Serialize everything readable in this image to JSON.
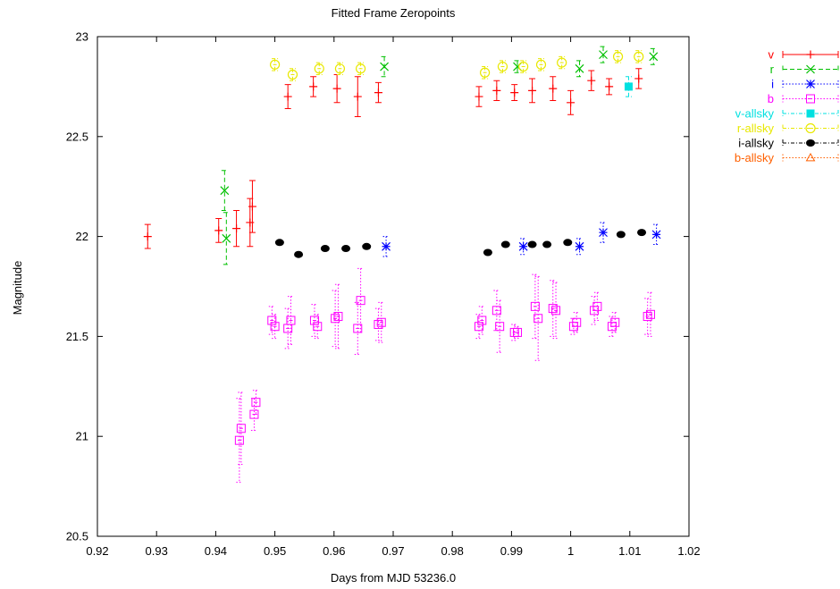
{
  "chart_data": {
    "type": "scatter",
    "title": "Fitted Frame Zeropoints",
    "xlabel": "Days from MJD 53236.0",
    "ylabel": "Magnitude",
    "xlim": [
      0.92,
      1.02
    ],
    "ylim": [
      20.5,
      23.0
    ],
    "xticks": [
      "0.92",
      "0.93",
      "0.94",
      "0.95",
      "0.96",
      "0.97",
      "0.98",
      "0.99",
      "1",
      "1.01",
      "1.02"
    ],
    "yticks": [
      "20.5",
      "21",
      "21.5",
      "22",
      "22.5",
      "23"
    ],
    "legend_position": "outside-right",
    "grid": false,
    "series": [
      {
        "name": "v",
        "color": "#ff0000",
        "marker": "plus",
        "line_style": "solid",
        "points": [
          {
            "x": 0.9285,
            "y": 22.0,
            "err": 0.06
          },
          {
            "x": 0.9405,
            "y": 22.03,
            "err": 0.06
          },
          {
            "x": 0.9435,
            "y": 22.04,
            "err": 0.09
          },
          {
            "x": 0.9458,
            "y": 22.07,
            "err": 0.12
          },
          {
            "x": 0.9462,
            "y": 22.15,
            "err": 0.13
          },
          {
            "x": 0.9522,
            "y": 22.7,
            "err": 0.06
          },
          {
            "x": 0.9565,
            "y": 22.75,
            "err": 0.05
          },
          {
            "x": 0.9605,
            "y": 22.74,
            "err": 0.07
          },
          {
            "x": 0.964,
            "y": 22.7,
            "err": 0.1
          },
          {
            "x": 0.9675,
            "y": 22.72,
            "err": 0.05
          },
          {
            "x": 0.9845,
            "y": 22.7,
            "err": 0.05
          },
          {
            "x": 0.9875,
            "y": 22.73,
            "err": 0.05
          },
          {
            "x": 0.9905,
            "y": 22.72,
            "err": 0.04
          },
          {
            "x": 0.9935,
            "y": 22.73,
            "err": 0.06
          },
          {
            "x": 0.997,
            "y": 22.74,
            "err": 0.06
          },
          {
            "x": 1.0,
            "y": 22.67,
            "err": 0.06
          },
          {
            "x": 1.0035,
            "y": 22.78,
            "err": 0.05
          },
          {
            "x": 1.0065,
            "y": 22.75,
            "err": 0.04
          },
          {
            "x": 1.0115,
            "y": 22.79,
            "err": 0.05
          }
        ]
      },
      {
        "name": "r",
        "color": "#00c000",
        "marker": "cross",
        "line_style": "dash",
        "points": [
          {
            "x": 0.9415,
            "y": 22.23,
            "err": 0.1
          },
          {
            "x": 0.9418,
            "y": 21.99,
            "err": 0.13
          },
          {
            "x": 0.9685,
            "y": 22.85,
            "err": 0.05
          },
          {
            "x": 0.991,
            "y": 22.85,
            "err": 0.03
          },
          {
            "x": 1.0015,
            "y": 22.84,
            "err": 0.04
          },
          {
            "x": 1.0055,
            "y": 22.91,
            "err": 0.04
          },
          {
            "x": 1.014,
            "y": 22.9,
            "err": 0.04
          }
        ]
      },
      {
        "name": "i",
        "color": "#0000ff",
        "marker": "star",
        "line_style": "dot",
        "points": [
          {
            "x": 0.9688,
            "y": 21.95,
            "err": 0.05
          },
          {
            "x": 0.992,
            "y": 21.95,
            "err": 0.04
          },
          {
            "x": 1.0015,
            "y": 21.95,
            "err": 0.04
          },
          {
            "x": 1.0055,
            "y": 22.02,
            "err": 0.05
          },
          {
            "x": 1.0145,
            "y": 22.01,
            "err": 0.05
          }
        ]
      },
      {
        "name": "b",
        "color": "#ff00ff",
        "marker": "open-square",
        "line_style": "dot",
        "points": [
          {
            "x": 0.944,
            "y": 20.98,
            "err": 0.21
          },
          {
            "x": 0.9443,
            "y": 21.04,
            "err": 0.18
          },
          {
            "x": 0.9465,
            "y": 21.11,
            "err": 0.08
          },
          {
            "x": 0.9468,
            "y": 21.17,
            "err": 0.06
          },
          {
            "x": 0.9495,
            "y": 21.58,
            "err": 0.07
          },
          {
            "x": 0.95,
            "y": 21.55,
            "err": 0.06
          },
          {
            "x": 0.9522,
            "y": 21.54,
            "err": 0.1
          },
          {
            "x": 0.9527,
            "y": 21.58,
            "err": 0.12
          },
          {
            "x": 0.9567,
            "y": 21.58,
            "err": 0.08
          },
          {
            "x": 0.9572,
            "y": 21.55,
            "err": 0.06
          },
          {
            "x": 0.9602,
            "y": 21.59,
            "err": 0.14
          },
          {
            "x": 0.9607,
            "y": 21.6,
            "err": 0.16
          },
          {
            "x": 0.964,
            "y": 21.54,
            "err": 0.13
          },
          {
            "x": 0.9645,
            "y": 21.68,
            "err": 0.16
          },
          {
            "x": 0.9675,
            "y": 21.56,
            "err": 0.08
          },
          {
            "x": 0.968,
            "y": 21.57,
            "err": 0.1
          },
          {
            "x": 0.9845,
            "y": 21.55,
            "err": 0.06
          },
          {
            "x": 0.985,
            "y": 21.58,
            "err": 0.07
          },
          {
            "x": 0.9875,
            "y": 21.63,
            "err": 0.1
          },
          {
            "x": 0.988,
            "y": 21.55,
            "err": 0.13
          },
          {
            "x": 0.9905,
            "y": 21.52,
            "err": 0.04
          },
          {
            "x": 0.991,
            "y": 21.52,
            "err": 0.03
          },
          {
            "x": 0.994,
            "y": 21.65,
            "err": 0.16
          },
          {
            "x": 0.9945,
            "y": 21.59,
            "err": 0.21
          },
          {
            "x": 0.997,
            "y": 21.64,
            "err": 0.14
          },
          {
            "x": 0.9975,
            "y": 21.63,
            "err": 0.14
          },
          {
            "x": 1.0005,
            "y": 21.55,
            "err": 0.04
          },
          {
            "x": 1.001,
            "y": 21.57,
            "err": 0.05
          },
          {
            "x": 1.004,
            "y": 21.63,
            "err": 0.07
          },
          {
            "x": 1.0045,
            "y": 21.65,
            "err": 0.07
          },
          {
            "x": 1.007,
            "y": 21.55,
            "err": 0.05
          },
          {
            "x": 1.0075,
            "y": 21.57,
            "err": 0.05
          },
          {
            "x": 1.013,
            "y": 21.6,
            "err": 0.09
          },
          {
            "x": 1.0135,
            "y": 21.61,
            "err": 0.11
          }
        ]
      },
      {
        "name": "v-allsky",
        "color": "#00e0e0",
        "marker": "filled-square",
        "line_style": "dashdot",
        "points": [
          {
            "x": 1.0098,
            "y": 22.75,
            "err": 0.05
          }
        ]
      },
      {
        "name": "r-allsky",
        "color": "#e8e800",
        "marker": "open-circle",
        "line_style": "dashdot",
        "points": [
          {
            "x": 0.95,
            "y": 22.86,
            "err": 0.03
          },
          {
            "x": 0.953,
            "y": 22.81,
            "err": 0.03
          },
          {
            "x": 0.9575,
            "y": 22.84,
            "err": 0.03
          },
          {
            "x": 0.961,
            "y": 22.84,
            "err": 0.03
          },
          {
            "x": 0.9645,
            "y": 22.84,
            "err": 0.03
          },
          {
            "x": 0.9855,
            "y": 22.82,
            "err": 0.03
          },
          {
            "x": 0.9885,
            "y": 22.85,
            "err": 0.03
          },
          {
            "x": 0.992,
            "y": 22.85,
            "err": 0.03
          },
          {
            "x": 0.995,
            "y": 22.86,
            "err": 0.03
          },
          {
            "x": 0.9985,
            "y": 22.87,
            "err": 0.03
          },
          {
            "x": 1.008,
            "y": 22.9,
            "err": 0.03
          },
          {
            "x": 1.0115,
            "y": 22.9,
            "err": 0.03
          }
        ]
      },
      {
        "name": "i-allsky",
        "color": "#000000",
        "marker": "filled-circle",
        "line_style": "dashdot",
        "points": [
          {
            "x": 0.9508,
            "y": 21.97,
            "err": 0.0
          },
          {
            "x": 0.954,
            "y": 21.91,
            "err": 0.0
          },
          {
            "x": 0.9585,
            "y": 21.94,
            "err": 0.0
          },
          {
            "x": 0.962,
            "y": 21.94,
            "err": 0.0
          },
          {
            "x": 0.9655,
            "y": 21.95,
            "err": 0.0
          },
          {
            "x": 0.986,
            "y": 21.92,
            "err": 0.0
          },
          {
            "x": 0.989,
            "y": 21.96,
            "err": 0.0
          },
          {
            "x": 0.9935,
            "y": 21.96,
            "err": 0.0
          },
          {
            "x": 0.996,
            "y": 21.96,
            "err": 0.0
          },
          {
            "x": 0.9995,
            "y": 21.97,
            "err": 0.0
          },
          {
            "x": 1.0085,
            "y": 22.01,
            "err": 0.0
          },
          {
            "x": 1.012,
            "y": 22.02,
            "err": 0.0
          }
        ]
      },
      {
        "name": "b-allsky",
        "color": "#ff6000",
        "marker": "open-triangle",
        "line_style": "dot",
        "points": []
      }
    ]
  }
}
